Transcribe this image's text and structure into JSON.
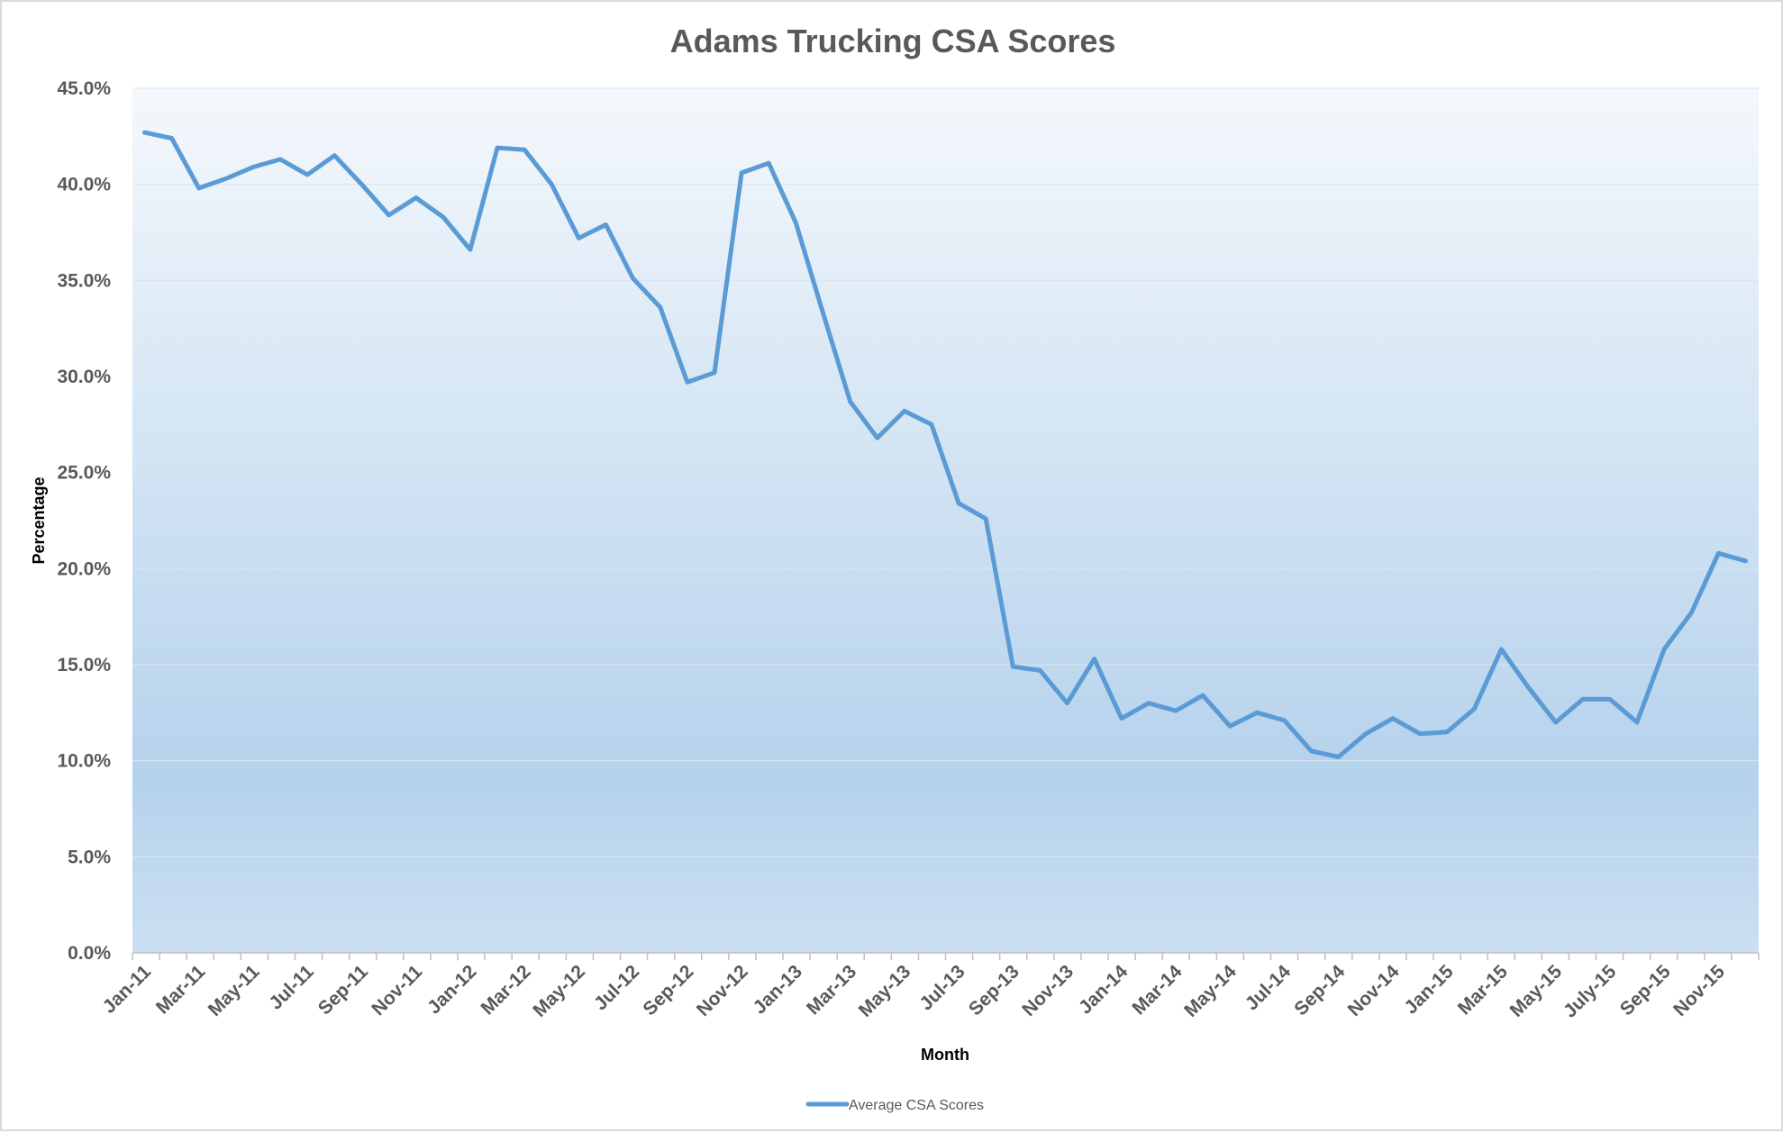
{
  "chart_data": {
    "type": "line",
    "title": "Adams Trucking CSA Scores",
    "xlabel": "Month",
    "ylabel": "Percentage",
    "ylim": [
      0,
      45
    ],
    "yticks": [
      "0.0%",
      "5.0%",
      "10.0%",
      "15.0%",
      "20.0%",
      "25.0%",
      "30.0%",
      "35.0%",
      "40.0%",
      "45.0%"
    ],
    "grid": true,
    "legend_position": "bottom",
    "categories": [
      "Jan-11",
      "Feb-11",
      "Mar-11",
      "Apr-11",
      "May-11",
      "Jun-11",
      "Jul-11",
      "Aug-11",
      "Sep-11",
      "Oct-11",
      "Nov-11",
      "Dec-11",
      "Jan-12",
      "Feb-12",
      "Mar-12",
      "Apr-12",
      "May-12",
      "Jun-12",
      "Jul-12",
      "Aug-12",
      "Sep-12",
      "Oct-12",
      "Nov-12",
      "Dec-12",
      "Jan-13",
      "Feb-13",
      "Mar-13",
      "Apr-13",
      "May-13",
      "Jun-13",
      "Jul-13",
      "Aug-13",
      "Sep-13",
      "Oct-13",
      "Nov-13",
      "Dec-13",
      "Jan-14",
      "Feb-14",
      "Mar-14",
      "Apr-14",
      "May-14",
      "Jun-14",
      "Jul-14",
      "Aug-14",
      "Sep-14",
      "Oct-14",
      "Nov-14",
      "Dec-14",
      "Jan-15",
      "Feb-15",
      "Mar-15",
      "Apr-15",
      "May-15",
      "Jun-15",
      "July-15",
      "Aug-15",
      "Sep-15",
      "Oct-15",
      "Nov-15",
      "Dec-15"
    ],
    "visible_xticks": [
      "Jan-11",
      "Mar-11",
      "May-11",
      "Jul-11",
      "Sep-11",
      "Nov-11",
      "Jan-12",
      "Mar-12",
      "May-12",
      "Jul-12",
      "Sep-12",
      "Nov-12",
      "Jan-13",
      "Mar-13",
      "May-13",
      "Jul-13",
      "Sep-13",
      "Nov-13",
      "Jan-14",
      "Mar-14",
      "May-14",
      "Jul-14",
      "Sep-14",
      "Nov-14",
      "Jan-15",
      "Mar-15",
      "May-15",
      "July-15",
      "Sep-15",
      "Nov-15"
    ],
    "series": [
      {
        "name": "Average CSA Scores",
        "color": "#5b9bd5",
        "values": [
          42.7,
          42.4,
          39.8,
          40.3,
          40.9,
          41.3,
          40.5,
          41.5,
          40.0,
          38.4,
          39.3,
          38.3,
          36.6,
          41.9,
          41.8,
          40.0,
          37.2,
          37.9,
          35.1,
          33.6,
          29.7,
          30.2,
          40.6,
          41.1,
          38.0,
          33.3,
          28.7,
          26.8,
          28.2,
          27.5,
          23.4,
          22.6,
          14.9,
          14.7,
          13.0,
          15.3,
          12.2,
          13.0,
          12.6,
          13.4,
          11.8,
          12.5,
          12.1,
          10.5,
          10.2,
          11.4,
          12.2,
          11.4,
          11.5,
          12.7,
          15.8,
          13.8,
          12.0,
          13.2,
          13.2,
          12.0,
          15.8,
          17.7,
          20.8,
          20.4
        ]
      }
    ]
  },
  "colors": {
    "line": "#5b9bd5",
    "plot_gradient_top": "#f4f8fc",
    "plot_gradient_mid": "#b5d2ec",
    "plot_gradient_bottom": "#cbdff1",
    "gridline": "#d9e5f0",
    "text": "#595959",
    "border": "#d9d9d9"
  }
}
